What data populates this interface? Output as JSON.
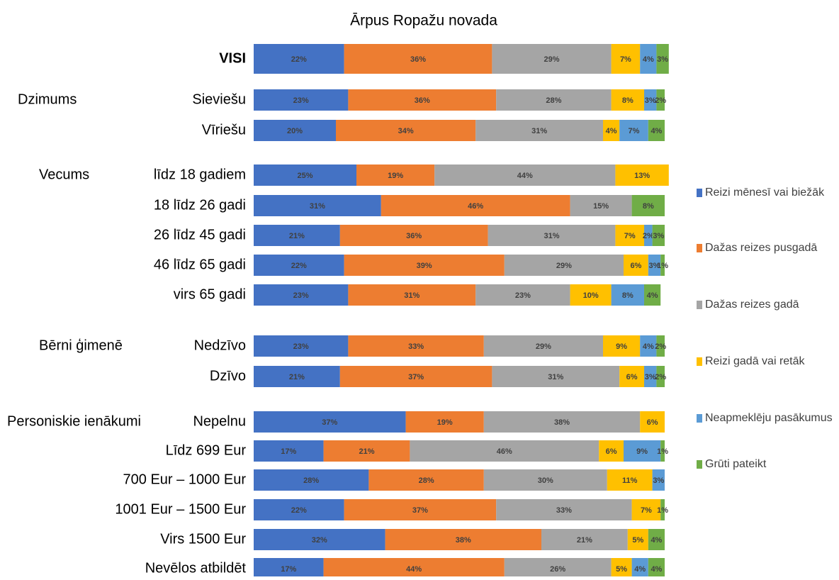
{
  "chart_data": {
    "type": "stacked-bar-horizontal",
    "title": "Ārpus Ropažu novada",
    "xlim": [
      0,
      100
    ],
    "categories": [
      "VISI",
      "Sieviešu",
      "Vīriešu",
      "līdz 18 gadiem",
      "18 līdz 26 gadi",
      "26 līdz 45 gadi",
      "46 līdz 65 gadi",
      "virs 65 gadi",
      "Nedzīvo",
      "Dzīvo",
      "Nepelnu",
      "Līdz 699 Eur",
      "700 Eur – 1000 Eur",
      "1001 Eur – 1500 Eur",
      "Virs 1500 Eur",
      "Nevēlos atbildēt"
    ],
    "group_labels": [
      null,
      "Dzimums",
      null,
      "Vecums",
      null,
      null,
      null,
      null,
      "Bērni ģimenē",
      null,
      "Personiskie ienākumi",
      null,
      null,
      null,
      null,
      null
    ],
    "series": [
      {
        "name": "Reizi mēnesī vai biežāk",
        "color": "#4472c4",
        "values": [
          22,
          23,
          20,
          25,
          31,
          21,
          22,
          23,
          23,
          21,
          37,
          17,
          28,
          22,
          32,
          17
        ],
        "value_labels": [
          "22%",
          "23%",
          "20%",
          "25%",
          "31%",
          "21%",
          "22%",
          "23%",
          "23%",
          "21%",
          "37%",
          "17%",
          "28%",
          "22%",
          "32%",
          "17%"
        ]
      },
      {
        "name": "Dažas reizes pusgadā",
        "color": "#ed7d31",
        "values": [
          36,
          36,
          34,
          19,
          46,
          36,
          39,
          31,
          33,
          37,
          19,
          21,
          28,
          37,
          38,
          44
        ],
        "value_labels": [
          "36%",
          "36%",
          "34%",
          "19%",
          "46%",
          "36%",
          "39%",
          "31%",
          "33%",
          "37%",
          "19%",
          "21%",
          "28%",
          "37%",
          "38%",
          "44%"
        ]
      },
      {
        "name": "Dažas reizes gadā",
        "color": "#a5a5a5",
        "values": [
          29,
          28,
          31,
          44,
          15,
          31,
          29,
          23,
          29,
          31,
          38,
          46,
          30,
          33,
          21,
          26
        ],
        "value_labels": [
          "29%",
          "28%",
          "31%",
          "44%",
          "15%",
          "31%",
          "29%",
          "23%",
          "29%",
          "31%",
          "38%",
          "46%",
          "30%",
          "33%",
          "21%",
          "26%"
        ]
      },
      {
        "name": "Reizi gadā vai retāk",
        "color": "#ffc000",
        "values": [
          7,
          8,
          4,
          13,
          null,
          7,
          6,
          10,
          9,
          6,
          6,
          6,
          11,
          7,
          5,
          5
        ],
        "value_labels": [
          "7%",
          "8%",
          "4%",
          "13%",
          null,
          "7%",
          "6%",
          "10%",
          "9%",
          "6%",
          "6%",
          "6%",
          "11%",
          "7%",
          "5%",
          "5%"
        ]
      },
      {
        "name": "Neapmeklēju pasākumus",
        "color": "#5b9bd5",
        "values": [
          4,
          3,
          7,
          null,
          null,
          2,
          3,
          8,
          4,
          3,
          null,
          9,
          3,
          null,
          null,
          4
        ],
        "value_labels": [
          "4%",
          "3%",
          "7%",
          null,
          null,
          "2%",
          "3%",
          "8%",
          "4%",
          "3%",
          null,
          "9%",
          "3%",
          null,
          null,
          "4%"
        ]
      },
      {
        "name": "Grūti pateikt",
        "color": "#70ad47",
        "values": [
          3,
          2,
          4,
          null,
          8,
          3,
          1,
          4,
          2,
          2,
          null,
          1,
          null,
          1,
          4,
          4
        ],
        "value_labels": [
          "3%",
          "2%",
          "4%",
          null,
          "8%",
          "3%",
          "1%",
          "4%",
          "2%",
          "2%",
          null,
          "1%",
          null,
          "1%",
          "4%",
          "4%"
        ]
      }
    ]
  }
}
